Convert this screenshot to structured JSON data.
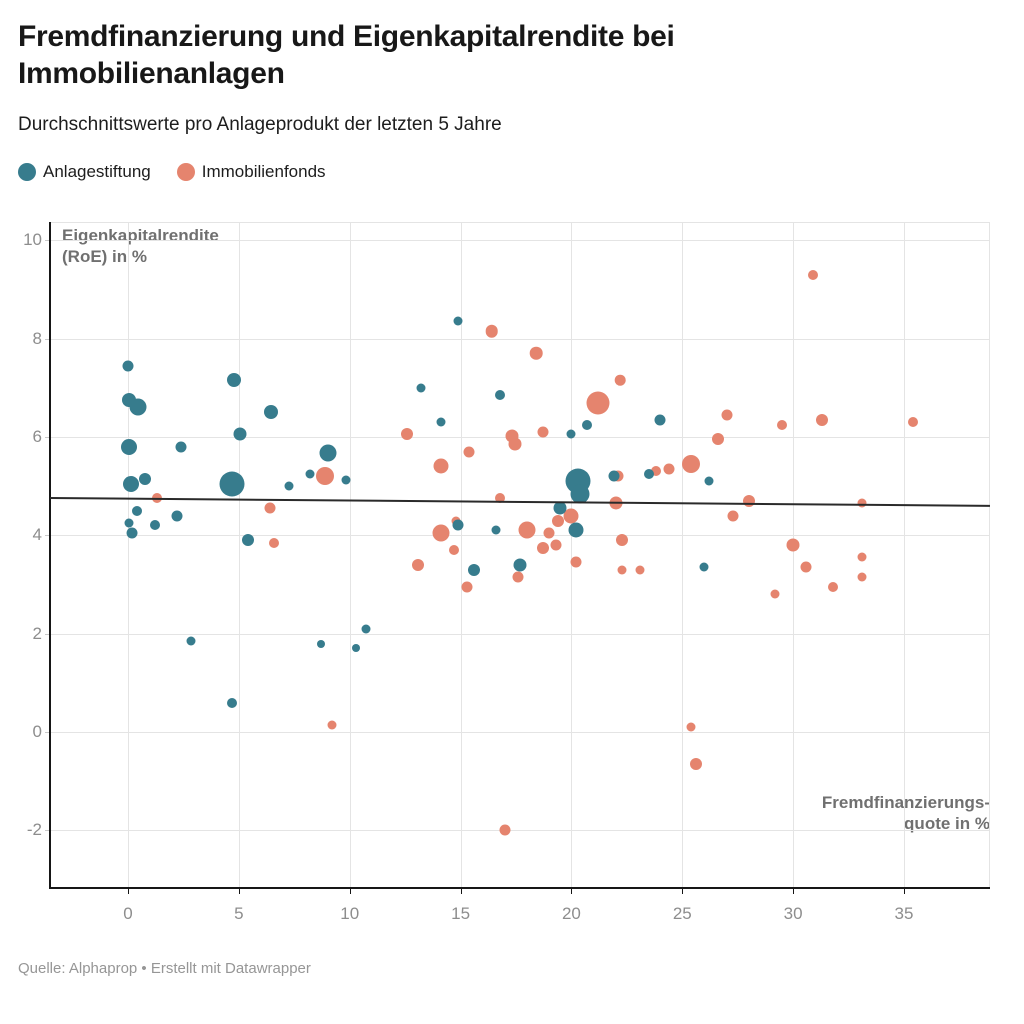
{
  "header": {
    "title": "Fremdfinanzierung und Eigenkapitalrendite bei Immobilienanlagen",
    "subtitle": "Durchschnittswerte pro Anlageprodukt der letzten 5 Jahre"
  },
  "legend": {
    "items": [
      {
        "label": "Anlagestiftung",
        "color": "#377C8D"
      },
      {
        "label": "Immobilienfonds",
        "color": "#E5846E"
      }
    ]
  },
  "footer": {
    "source": "Quelle: Alphaprop • Erstellt mit Datawrapper"
  },
  "chart_data": {
    "type": "scatter",
    "title": "Fremdfinanzierung und Eigenkapitalrendite bei Immobilienanlagen",
    "subtitle": "Durchschnittswerte pro Anlageprodukt der letzten 5 Jahre",
    "xlabel": "Fremdfinanzierungs-\nquote in %",
    "ylabel": "Eigenkapitalrendite\n(RoE) in %",
    "xlabel_line1": "Fremdfinanzierungs-",
    "xlabel_line2": "quote in %",
    "ylabel_line1": "Eigenkapitalrendite",
    "ylabel_line2": "(RoE) in %",
    "xlim": [
      -3.52,
      38.88
    ],
    "ylim": [
      -3.17,
      10.37
    ],
    "x_ticks": [
      0,
      5,
      10,
      15,
      20,
      25,
      30,
      35
    ],
    "y_ticks": [
      -2,
      0,
      2,
      4,
      6,
      8,
      10
    ],
    "grid": true,
    "legend_position": "top-left",
    "colors": {
      "anlagestiftung": "#377C8D",
      "immobilienfonds": "#E5846E",
      "trend": "#2a2a2a"
    },
    "trendline": {
      "x1": -3.52,
      "y1": 4.78,
      "x2": 38.88,
      "y2": 4.62
    },
    "series": [
      {
        "name": "Immobilienfonds",
        "color": "#E5846E",
        "points": [
          [
            30.9,
            9.3,
            5
          ],
          [
            16.4,
            8.15,
            6.3
          ],
          [
            18.4,
            7.7,
            6.3
          ],
          [
            22.2,
            7.15,
            5.3
          ],
          [
            21.2,
            6.7,
            11.5
          ],
          [
            27.0,
            6.45,
            5.5
          ],
          [
            31.3,
            6.35,
            6
          ],
          [
            35.4,
            6.3,
            5
          ],
          [
            29.5,
            6.25,
            5
          ],
          [
            18.7,
            6.1,
            5.5
          ],
          [
            12.6,
            6.05,
            6
          ],
          [
            17.3,
            6.02,
            6.5
          ],
          [
            26.6,
            5.95,
            6
          ],
          [
            17.45,
            5.85,
            6.5
          ],
          [
            15.4,
            5.7,
            5.5
          ],
          [
            25.4,
            5.45,
            9
          ],
          [
            14.1,
            5.4,
            7.5
          ],
          [
            24.4,
            5.35,
            5.5
          ],
          [
            23.8,
            5.3,
            5
          ],
          [
            8.9,
            5.2,
            9
          ],
          [
            22.1,
            5.2,
            5.5
          ],
          [
            1.3,
            4.75,
            5
          ],
          [
            16.8,
            4.75,
            5
          ],
          [
            28.0,
            4.7,
            6
          ],
          [
            33.1,
            4.65,
            4.5
          ],
          [
            22.0,
            4.65,
            6.5
          ],
          [
            6.4,
            4.55,
            5.5
          ],
          [
            20.0,
            4.4,
            7.5
          ],
          [
            27.3,
            4.4,
            5.5
          ],
          [
            19.4,
            4.3,
            6
          ],
          [
            14.8,
            4.3,
            4.5
          ],
          [
            18.0,
            4.1,
            8.5
          ],
          [
            14.1,
            4.05,
            8.5
          ],
          [
            19.0,
            4.05,
            5.5
          ],
          [
            22.3,
            3.9,
            6
          ],
          [
            6.6,
            3.85,
            5
          ],
          [
            30.0,
            3.8,
            6.5
          ],
          [
            19.3,
            3.8,
            5.5
          ],
          [
            18.7,
            3.75,
            6
          ],
          [
            14.7,
            3.7,
            5
          ],
          [
            33.1,
            3.55,
            4.5
          ],
          [
            20.2,
            3.45,
            5.5
          ],
          [
            13.1,
            3.4,
            6
          ],
          [
            30.6,
            3.35,
            5.5
          ],
          [
            22.3,
            3.3,
            4.5
          ],
          [
            23.1,
            3.3,
            4.5
          ],
          [
            17.6,
            3.15,
            5.5
          ],
          [
            33.1,
            3.15,
            4.5
          ],
          [
            15.3,
            2.95,
            5.5
          ],
          [
            31.8,
            2.95,
            5
          ],
          [
            29.2,
            2.8,
            4.5
          ],
          [
            9.2,
            0.15,
            4.5
          ],
          [
            25.4,
            0.1,
            4.5
          ],
          [
            25.6,
            -0.65,
            6
          ],
          [
            17.0,
            -2.0,
            5.5
          ]
        ]
      },
      {
        "name": "Anlagestiftung",
        "color": "#377C8D",
        "points": [
          [
            14.9,
            8.35,
            4.5
          ],
          [
            0.0,
            7.45,
            5.5
          ],
          [
            4.8,
            7.15,
            7
          ],
          [
            13.2,
            7.0,
            4.5
          ],
          [
            16.8,
            6.85,
            5
          ],
          [
            0.05,
            6.75,
            7
          ],
          [
            0.45,
            6.6,
            8.5
          ],
          [
            6.45,
            6.5,
            7
          ],
          [
            24.0,
            6.35,
            5.5
          ],
          [
            14.1,
            6.3,
            4.5
          ],
          [
            20.7,
            6.25,
            5
          ],
          [
            20.0,
            6.05,
            4.5
          ],
          [
            5.05,
            6.05,
            6.5
          ],
          [
            0.05,
            5.8,
            8
          ],
          [
            2.4,
            5.8,
            5.5
          ],
          [
            9.0,
            5.68,
            8.5
          ],
          [
            23.5,
            5.25,
            5
          ],
          [
            8.2,
            5.25,
            4.5
          ],
          [
            21.9,
            5.2,
            5.5
          ],
          [
            0.75,
            5.15,
            6
          ],
          [
            9.85,
            5.12,
            4.5
          ],
          [
            20.3,
            5.1,
            12.5
          ],
          [
            26.2,
            5.1,
            4.5
          ],
          [
            0.15,
            5.05,
            8
          ],
          [
            4.7,
            5.05,
            12.5
          ],
          [
            7.25,
            5.0,
            4.5
          ],
          [
            20.4,
            4.85,
            9.5
          ],
          [
            19.5,
            4.55,
            6.5
          ],
          [
            0.4,
            4.5,
            5
          ],
          [
            2.2,
            4.4,
            5.5
          ],
          [
            0.05,
            4.25,
            4.5
          ],
          [
            1.2,
            4.2,
            5
          ],
          [
            14.9,
            4.2,
            5.5
          ],
          [
            16.6,
            4.1,
            4.5
          ],
          [
            20.2,
            4.1,
            7.5
          ],
          [
            0.2,
            4.05,
            5.5
          ],
          [
            5.4,
            3.9,
            6
          ],
          [
            17.7,
            3.4,
            6.5
          ],
          [
            26.0,
            3.35,
            4.5
          ],
          [
            15.6,
            3.3,
            6
          ],
          [
            10.75,
            2.1,
            4.5
          ],
          [
            2.85,
            1.85,
            4.5
          ],
          [
            8.7,
            1.8,
            4
          ],
          [
            10.3,
            1.7,
            4
          ],
          [
            4.7,
            0.6,
            5
          ],
          [
            14.9,
            8.4,
            0
          ]
        ]
      }
    ]
  }
}
